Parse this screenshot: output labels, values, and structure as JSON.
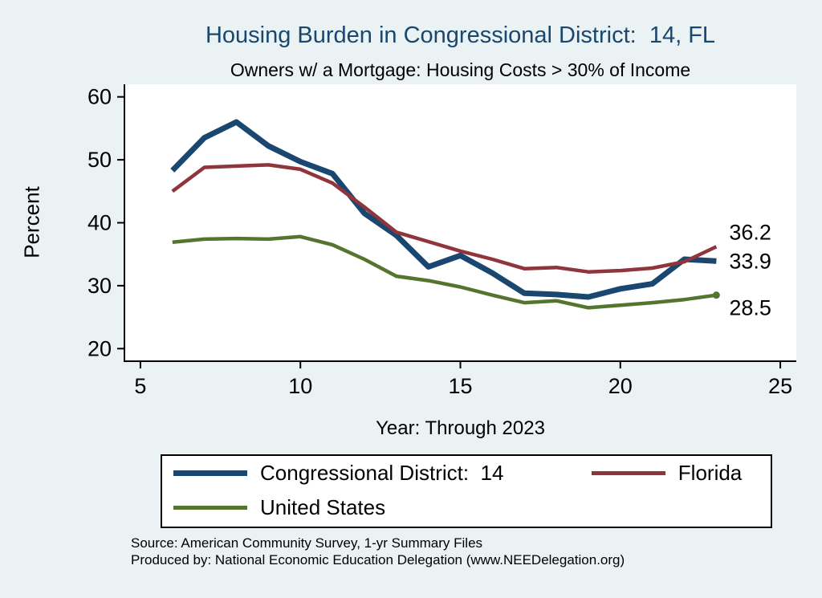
{
  "chart_data": {
    "type": "line",
    "title": "Housing Burden in Congressional District:  14, FL",
    "subtitle": "Owners w/ a Mortgage: Housing Costs > 30% of Income",
    "xlabel": "Year: Through 2023",
    "ylabel": "Percent",
    "xlim": [
      4.5,
      25.5
    ],
    "ylim": [
      18,
      62
    ],
    "x_ticks": [
      5,
      10,
      15,
      20,
      25
    ],
    "y_ticks": [
      20,
      30,
      40,
      50,
      60
    ],
    "grid": false,
    "legend_position": "bottom",
    "x": [
      6,
      7,
      8,
      9,
      10,
      11,
      12,
      13,
      14,
      15,
      16,
      17,
      18,
      19,
      20,
      21,
      22,
      23
    ],
    "series": [
      {
        "key": "congressional-district-14",
        "name": "Congressional District:  14",
        "color": "#1a476f",
        "width": 7,
        "end_marker": false,
        "values": [
          48.3,
          53.5,
          56.0,
          52.2,
          49.7,
          47.8,
          41.5,
          38.0,
          33.0,
          34.8,
          32.0,
          28.8,
          28.6,
          28.2,
          29.5,
          30.3,
          34.2,
          33.9
        ]
      },
      {
        "key": "florida",
        "name": "Florida",
        "color": "#90353b",
        "width": 4.5,
        "end_marker": false,
        "values": [
          45.0,
          48.8,
          49.0,
          49.2,
          48.5,
          46.3,
          42.5,
          38.5,
          37.0,
          35.5,
          34.2,
          32.7,
          32.9,
          32.2,
          32.4,
          32.8,
          33.8,
          36.2
        ]
      },
      {
        "key": "united-states",
        "name": "United States",
        "color": "#55752f",
        "width": 4.5,
        "end_marker": true,
        "values": [
          36.9,
          37.4,
          37.5,
          37.4,
          37.8,
          36.5,
          34.2,
          31.5,
          30.8,
          29.8,
          28.5,
          27.3,
          27.6,
          26.5,
          26.9,
          27.3,
          27.8,
          28.5
        ]
      }
    ],
    "end_labels": [
      {
        "text": "36.2",
        "value": 36.2,
        "dy": 0
      },
      {
        "text": "33.9",
        "value": 33.9,
        "dy": 0
      },
      {
        "text": "28.5",
        "value": 28.5,
        "dy": 16
      }
    ]
  },
  "colors": {
    "background": "#eaf2f3",
    "plot_background": "#ffffff",
    "axis": "#000000",
    "title_text": "#1a476f"
  },
  "footer": {
    "source": "Source: American Community Survey, 1-yr Summary Files",
    "produced_by": "Produced by: National Economic Education Delegation (www.NEEDelegation.org)"
  }
}
